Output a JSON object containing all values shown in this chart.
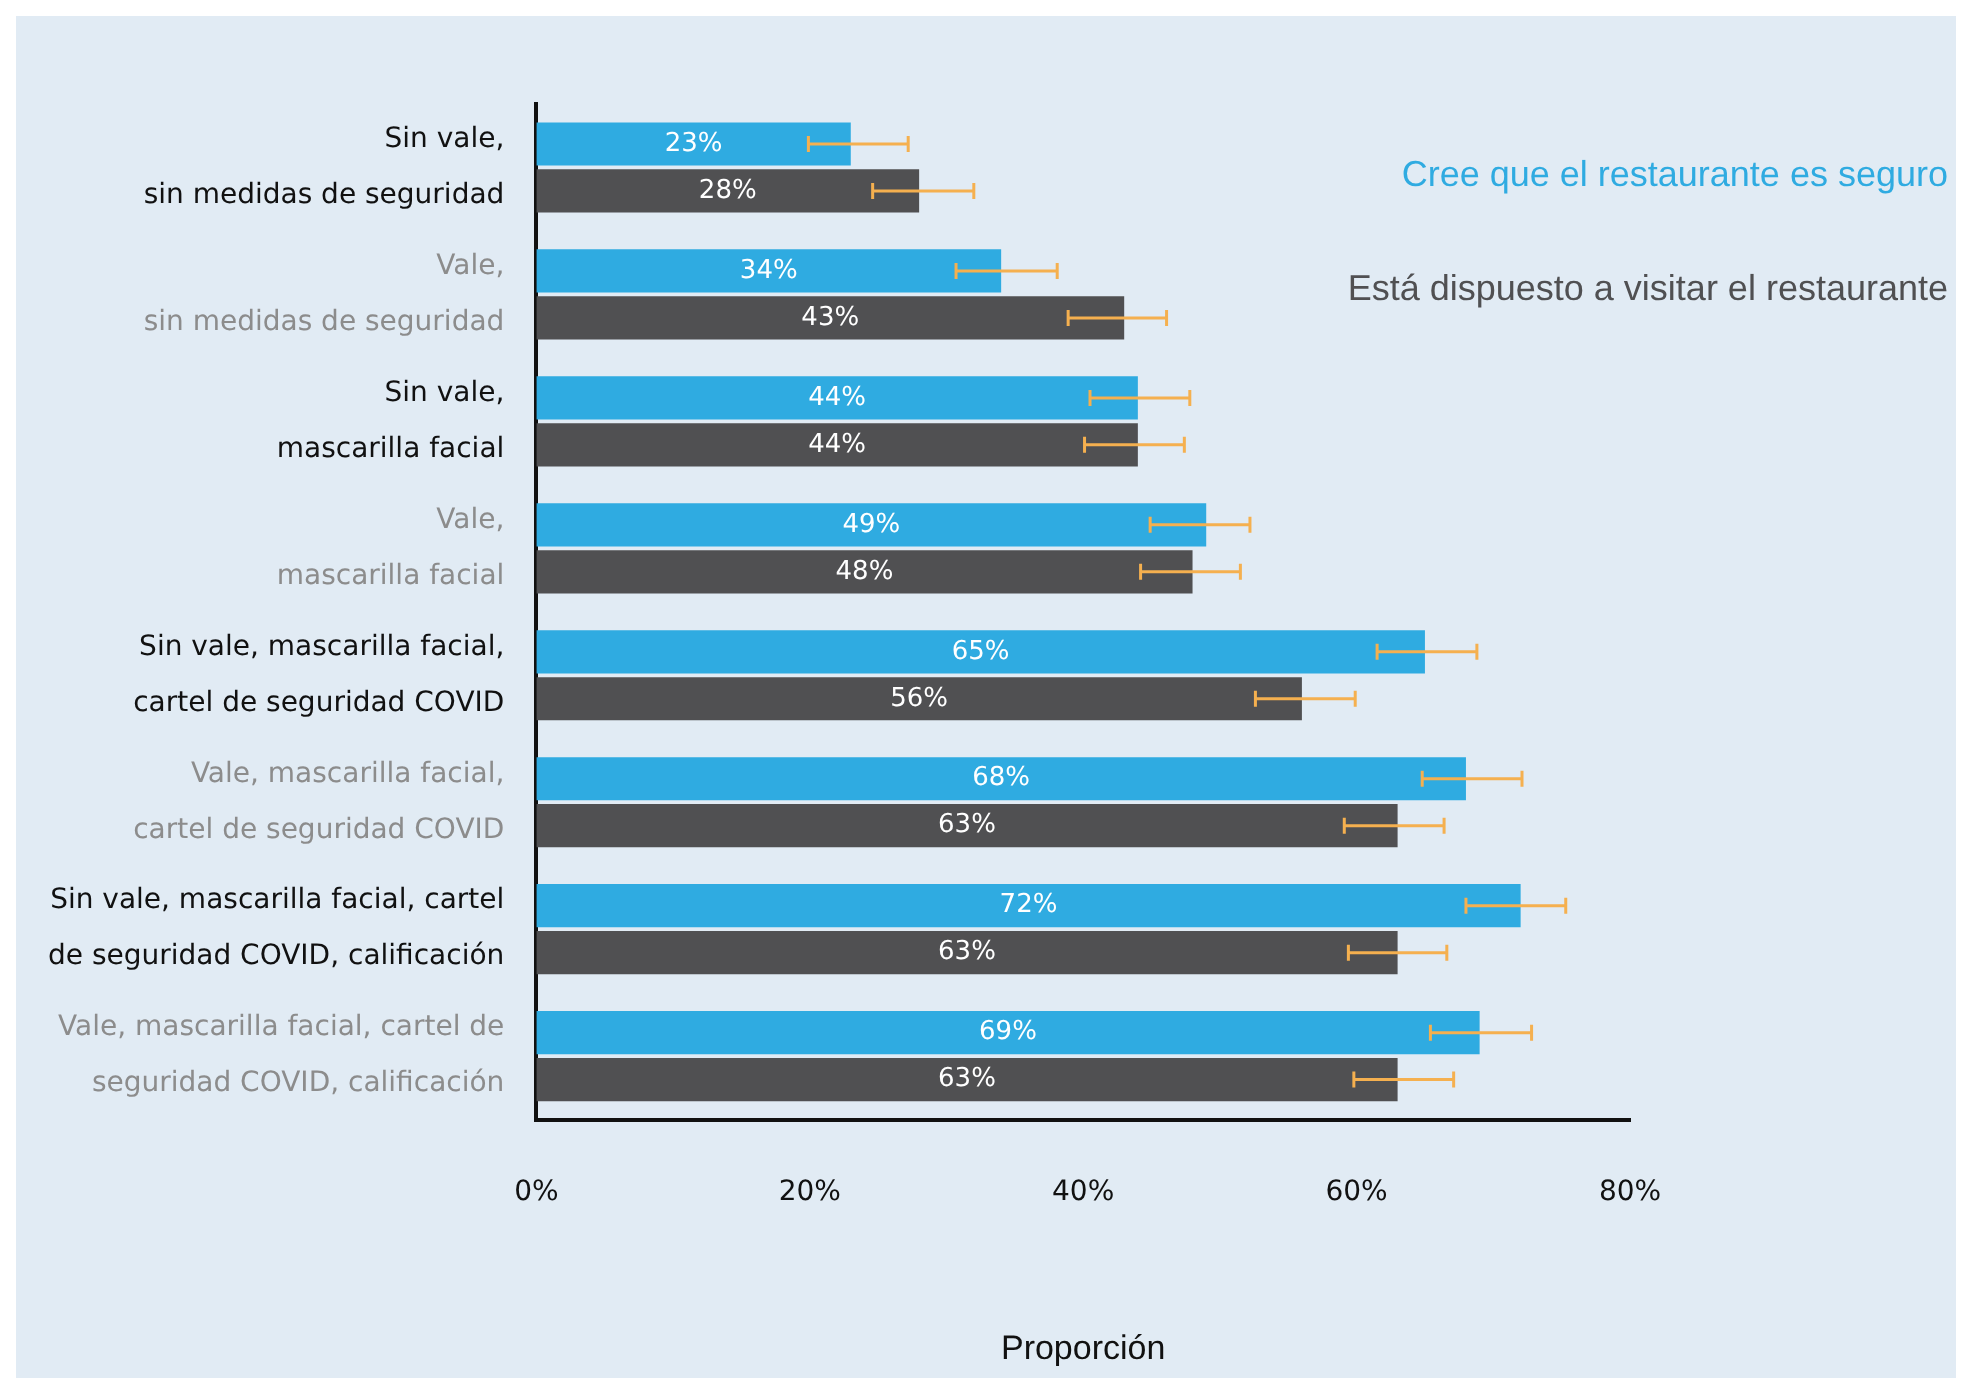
{
  "chart_data": {
    "type": "bar",
    "orientation": "horizontal",
    "categories": [
      "Sin vale,\nsin medidas de seguridad",
      "Vale,\nsin medidas de seguridad",
      "Sin vale,\nmascarilla facial",
      "Vale,\nmascarilla facial",
      "Sin vale, mascarilla facial,\ncartel de seguridad COVID",
      "Vale, mascarilla facial,\ncartel de seguridad COVID",
      "Sin vale, mascarilla facial, cartel\nde seguridad COVID, calificación",
      "Vale, mascarilla facial, cartel de\nseguridad COVID, calificación"
    ],
    "series": [
      {
        "name": "Cree que el restaurante es seguro",
        "color": "#2fabe1",
        "values": [
          23,
          34,
          44,
          49,
          65,
          68,
          72,
          69
        ],
        "value_labels": [
          "23%",
          "34%",
          "44%",
          "49%",
          "65%",
          "68%",
          "72%",
          "69%"
        ],
        "errors": [
          [
            19.9,
            27.2
          ],
          [
            30.7,
            38.1
          ],
          [
            40.5,
            47.8
          ],
          [
            44.9,
            52.2
          ],
          [
            61.5,
            68.8
          ],
          [
            64.8,
            72.1
          ],
          [
            68.0,
            75.3
          ],
          [
            65.4,
            72.8
          ]
        ]
      },
      {
        "name": "Está dispuesto a visitar el restaurante",
        "color": "#505052",
        "values": [
          28,
          43,
          44,
          48,
          56,
          63,
          63,
          63
        ],
        "value_labels": [
          "28%",
          "43%",
          "44%",
          "48%",
          "56%",
          "63%",
          "63%",
          "63%"
        ],
        "errors": [
          [
            24.6,
            32.0
          ],
          [
            38.9,
            46.1
          ],
          [
            40.1,
            47.4
          ],
          [
            44.2,
            51.5
          ],
          [
            52.6,
            59.9
          ],
          [
            59.1,
            66.4
          ],
          [
            59.4,
            66.6
          ],
          [
            59.8,
            67.1
          ]
        ]
      }
    ],
    "xlabel": "Proporción",
    "xlim": [
      0,
      80
    ],
    "xticks": [
      {
        "value": 0,
        "label": "0%"
      },
      {
        "value": 20,
        "label": "20%"
      },
      {
        "value": 40,
        "label": "40%"
      },
      {
        "value": 60,
        "label": "60%"
      },
      {
        "value": 80,
        "label": "80%"
      }
    ],
    "grid": false,
    "legend": "top right"
  }
}
